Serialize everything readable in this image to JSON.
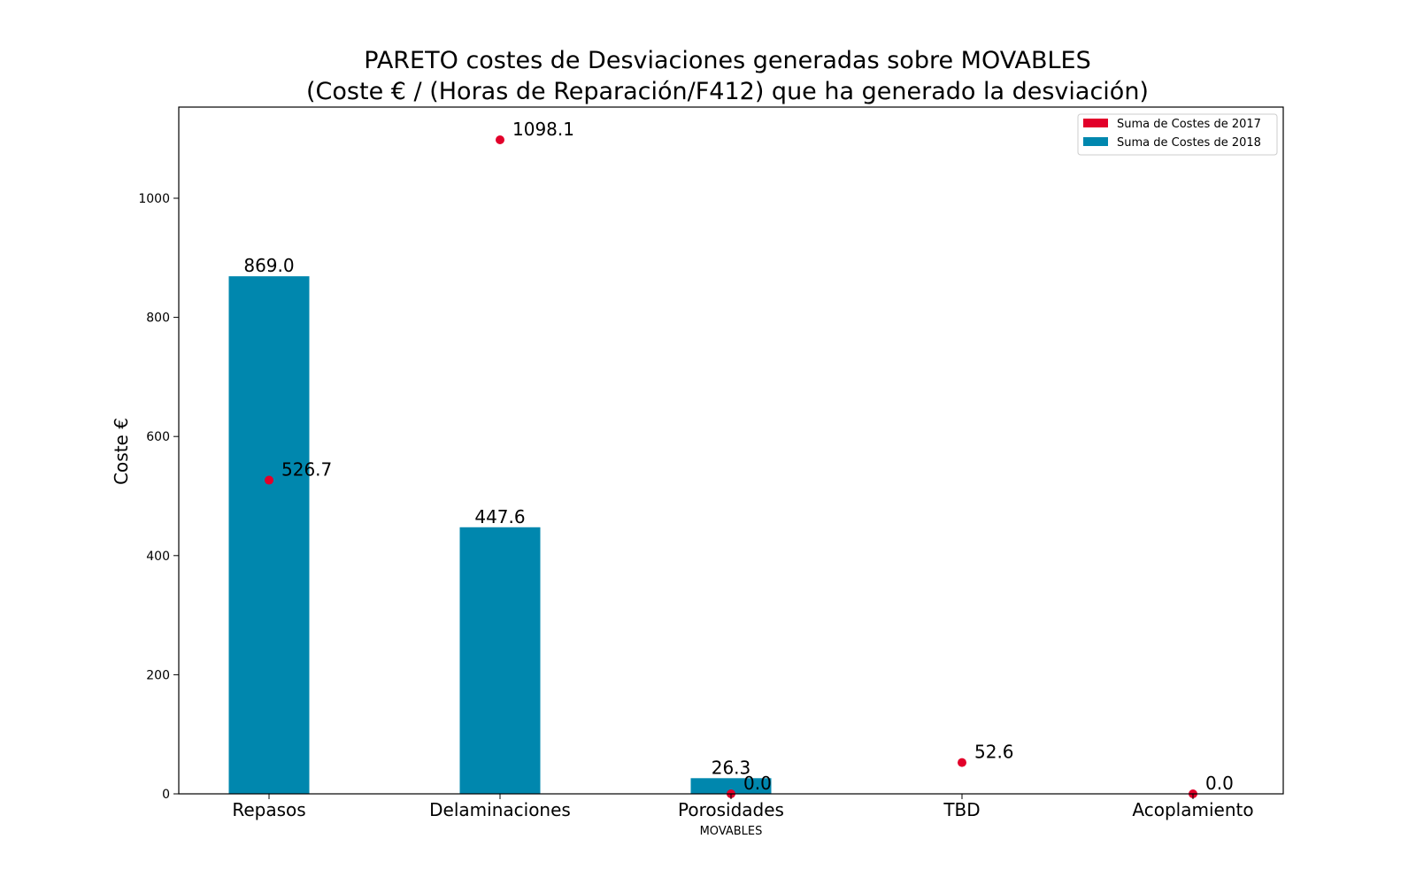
{
  "chart_data": {
    "type": "bar",
    "title": "PARETO costes de Desviaciones  generadas  sobre MOVABLES",
    "subtitle": "(Coste € / (Horas de Reparación/F412) que ha generado la desviación)",
    "xlabel": "MOVABLES",
    "ylabel": "Coste €",
    "ylim": [
      0,
      1150
    ],
    "yticks": [
      0,
      200,
      400,
      600,
      800,
      1000
    ],
    "categories": [
      "Repasos",
      "Delaminaciones",
      "Porosidades",
      "TBD",
      "Acoplamiento"
    ],
    "series": [
      {
        "name": "Suma de Costes de 2017",
        "type": "scatter",
        "color": "#e2002a",
        "values": [
          526.7,
          1098.1,
          0.0,
          52.6,
          0.0
        ],
        "labels": [
          "526.7",
          "1098.1",
          "0.0",
          "52.6",
          "0.0"
        ]
      },
      {
        "name": "Suma de Costes de 2018",
        "type": "bar",
        "color": "#0087ae",
        "values": [
          869.0,
          447.6,
          26.3,
          null,
          null
        ],
        "labels": [
          "869.0",
          "447.6",
          "26.3",
          null,
          null
        ]
      }
    ],
    "legend_position": "top-right",
    "grid": false
  }
}
